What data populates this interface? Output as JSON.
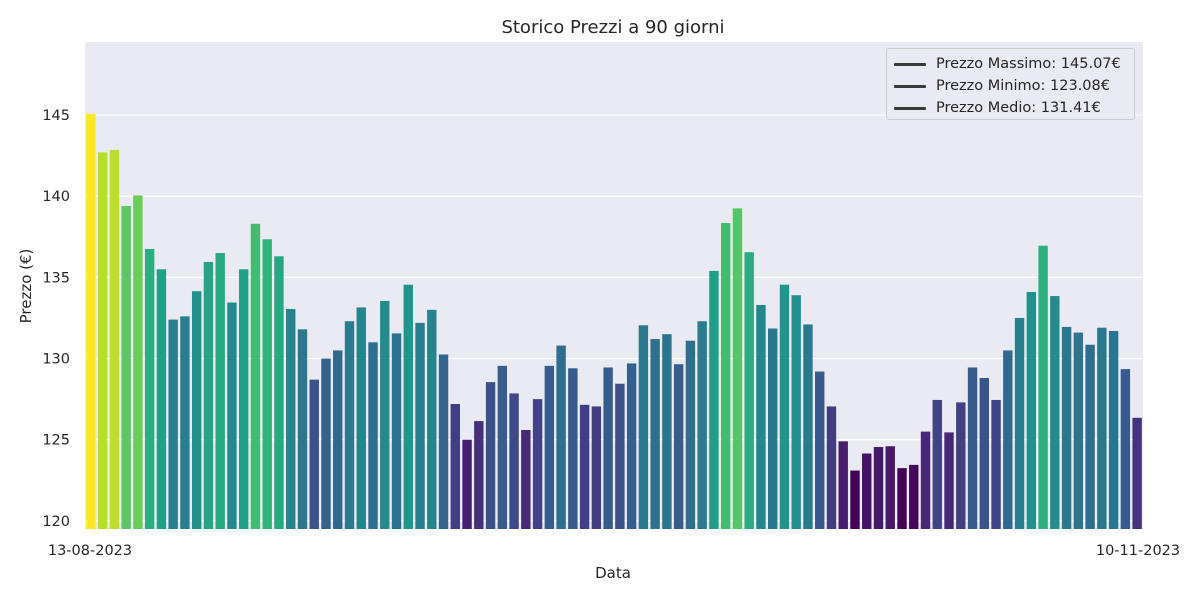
{
  "chart_data": {
    "type": "bar",
    "title": "Storico Prezzi a 90 giorni",
    "xlabel": "Data",
    "ylabel": "Prezzo (€)",
    "ylim": [
      119.5,
      149.5
    ],
    "yticks": [
      120,
      125,
      130,
      135,
      140,
      145
    ],
    "grid": true,
    "colormap": "viridis",
    "legend_position": "top-right",
    "x_start": "13-08-2023",
    "x_end": "10-11-2023",
    "x_tick_labels": [
      "13-08-2023",
      "10-11-2023"
    ],
    "values": [
      145.07,
      142.7,
      142.85,
      139.4,
      140.05,
      136.75,
      135.5,
      132.4,
      132.6,
      134.15,
      135.95,
      136.5,
      133.45,
      135.5,
      138.3,
      137.35,
      136.3,
      133.05,
      131.8,
      128.7,
      130.0,
      130.5,
      132.3,
      133.15,
      131.0,
      133.55,
      131.55,
      134.55,
      132.2,
      133.0,
      130.25,
      127.2,
      125.0,
      126.15,
      128.55,
      129.55,
      127.85,
      125.6,
      127.5,
      129.55,
      130.8,
      129.4,
      127.15,
      127.05,
      129.45,
      128.45,
      129.7,
      132.05,
      131.2,
      131.5,
      129.65,
      131.1,
      132.3,
      135.4,
      138.35,
      139.25,
      136.55,
      133.3,
      131.85,
      134.55,
      133.9,
      132.1,
      129.2,
      127.05,
      124.9,
      123.1,
      124.15,
      124.55,
      124.6,
      123.25,
      123.45,
      125.5,
      127.45,
      125.45,
      127.3,
      129.45,
      128.8,
      127.45,
      130.5,
      132.5,
      134.1,
      136.95,
      133.85,
      131.95,
      131.6,
      130.85,
      131.9,
      131.7,
      129.35,
      126.35
    ],
    "legend": [
      {
        "label": "Prezzo Massimo: 145.07€",
        "value": 145.07
      },
      {
        "label": "Prezzo Minimo: 123.08€",
        "value": 123.08
      },
      {
        "label": "Prezzo Medio: 131.41€",
        "value": 131.41
      }
    ]
  },
  "colors": {
    "background": "#eaeaf2",
    "grid": "#ffffff",
    "legend_line": "#3a3a3a"
  }
}
